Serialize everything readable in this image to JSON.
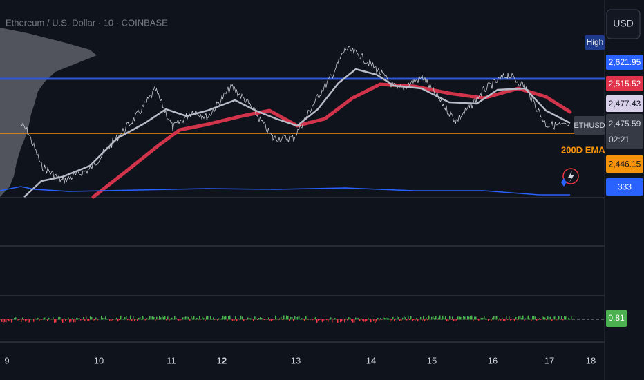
{
  "header": {
    "title": "Ethereum / U.S. Dollar · 10 · COINBASE",
    "currency": "USD"
  },
  "price_scale": {
    "high_tag": "High",
    "labels": [
      {
        "text": "2,621.95",
        "color": "#2962ff",
        "text_color": "#ffffff"
      },
      {
        "text": "2,515.52",
        "color": "#e0334a",
        "text_color": "#ffffff"
      },
      {
        "text": "2,477.43",
        "color": "#d8cfe8",
        "text_color": "#131722"
      },
      {
        "text": "2,446.15",
        "color": "#f5930b",
        "text_color": "#131722"
      },
      {
        "text": "333",
        "color": "#2962ff",
        "text_color": "#ffffff"
      }
    ],
    "last_price": "2,475.59",
    "countdown": "02:21",
    "symbol_tag": "ETHUSD"
  },
  "indicator_label": "200D EMA",
  "oscillator_value": "0.81",
  "dates": [
    "9",
    "10",
    "11",
    "12",
    "13",
    "14",
    "15",
    "16",
    "17",
    "18"
  ]
}
